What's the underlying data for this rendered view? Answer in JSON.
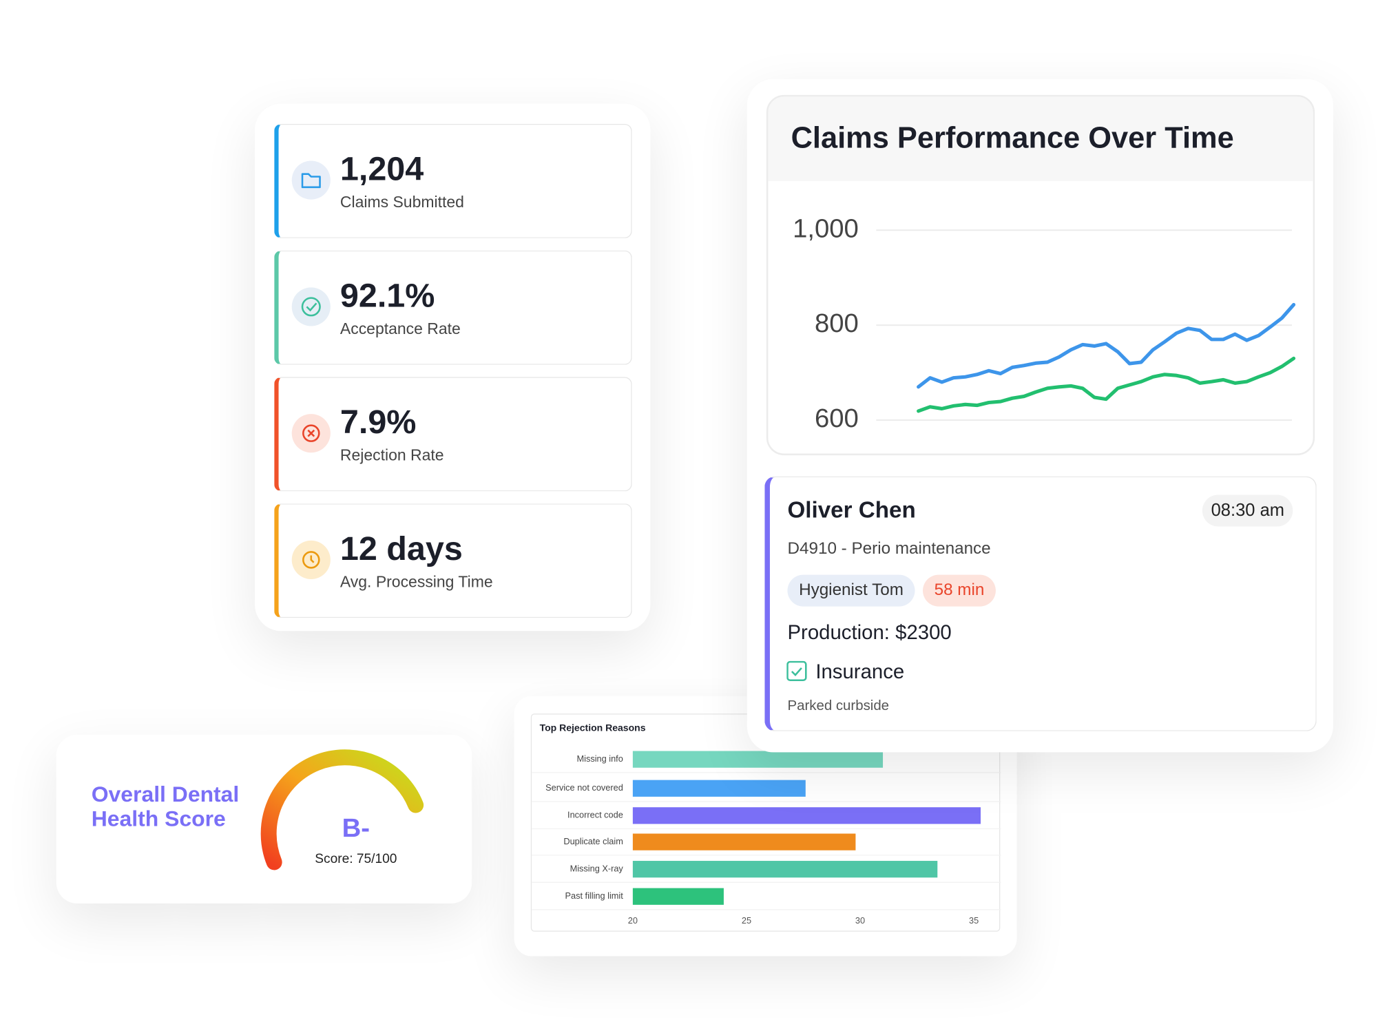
{
  "stats": [
    {
      "value": "1,204",
      "label": "Claims Submitted"
    },
    {
      "value": "92.1%",
      "label": "Acceptance Rate"
    },
    {
      "value": "7.9%",
      "label": "Rejection Rate"
    },
    {
      "value": "12 days",
      "label": "Avg. Processing Time"
    }
  ],
  "chart_data": [
    {
      "type": "line",
      "title": "Claims Performance Over Time",
      "ylim": [
        575,
        1035
      ],
      "yticks": [
        {
          "value": 1000,
          "label": "1,000"
        },
        800,
        600
      ],
      "grid": true,
      "series": [
        {
          "color": "#3d95ea",
          "values": [
            670,
            689,
            680,
            689,
            691,
            696,
            704,
            698,
            711,
            715,
            720,
            722,
            733,
            748,
            759,
            756,
            761,
            744,
            719,
            722,
            748,
            765,
            783,
            793,
            789,
            770,
            770,
            781,
            768,
            778,
            796,
            815,
            843
          ]
        },
        {
          "color": "#22bf6f",
          "values": [
            619,
            628,
            624,
            630,
            633,
            631,
            637,
            639,
            646,
            650,
            659,
            667,
            670,
            672,
            667,
            648,
            644,
            667,
            674,
            681,
            691,
            696,
            694,
            689,
            678,
            681,
            685,
            678,
            681,
            691,
            700,
            713,
            730
          ]
        }
      ]
    },
    {
      "type": "bar",
      "title": "Top Rejection Reasons",
      "categories": [
        "Missing info",
        "Service not covered",
        "Incorrect code",
        "Duplicate claim",
        "Missing X-ray",
        "Past filling limit"
      ],
      "values": [
        31,
        27.6,
        35.3,
        29.8,
        33.4,
        24
      ],
      "colors": [
        "#76d7bf",
        "#4aa3f5",
        "#7a6ff6",
        "#ef8b1d",
        "#4fc6a6",
        "#2dc27c"
      ],
      "xlim": [
        20,
        35.5
      ],
      "xticks": [
        20,
        25,
        30,
        35
      ]
    }
  ],
  "appointment": {
    "name": "Oliver Chen",
    "time": "08:30 am",
    "procedure": "D4910 - Perio maintenance",
    "provider": "Hygienist Tom",
    "duration": "58 min",
    "production": "Production: $2300",
    "insurance": "Insurance",
    "note": "Parked curbside"
  },
  "gauge": {
    "title": "Overall Dental Health Score",
    "grade": "B-",
    "score": "Score: 75/100"
  }
}
